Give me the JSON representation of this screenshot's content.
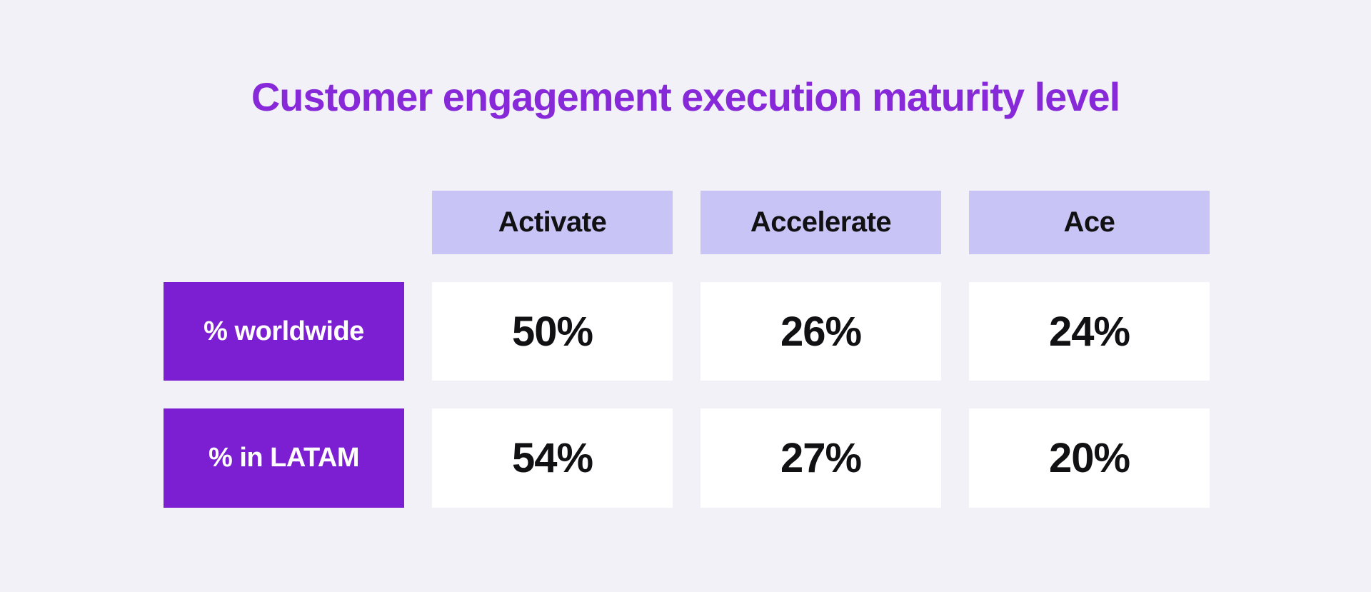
{
  "title": {
    "text": "Customer engagement execution maturity level"
  },
  "table": {
    "column_headers": [
      "Activate",
      "Accelerate",
      "Ace"
    ],
    "rows": [
      {
        "label": "% worldwide",
        "values": [
          "50%",
          "26%",
          "24%"
        ]
      },
      {
        "label": "% in LATAM",
        "values": [
          "54%",
          "27%",
          "20%"
        ]
      }
    ]
  },
  "colors": {
    "page-bg": "#f2f1f7",
    "title-purple": "#8728d9",
    "header-bg": "#c8c4f5",
    "row-label-bg": "#7c1fd3",
    "row-label-text": "#ffffff",
    "cell-bg": "#ffffff",
    "cell-text": "#111113"
  },
  "chart_data": {
    "type": "table",
    "title": "Customer engagement execution maturity level",
    "categories": [
      "Activate",
      "Accelerate",
      "Ace"
    ],
    "series": [
      {
        "name": "% worldwide",
        "values": [
          50,
          26,
          24
        ],
        "unit": "%"
      },
      {
        "name": "% in LATAM",
        "values": [
          54,
          27,
          20
        ],
        "unit": "%"
      }
    ],
    "layout": {
      "grid": false,
      "legend_position": "none"
    }
  }
}
